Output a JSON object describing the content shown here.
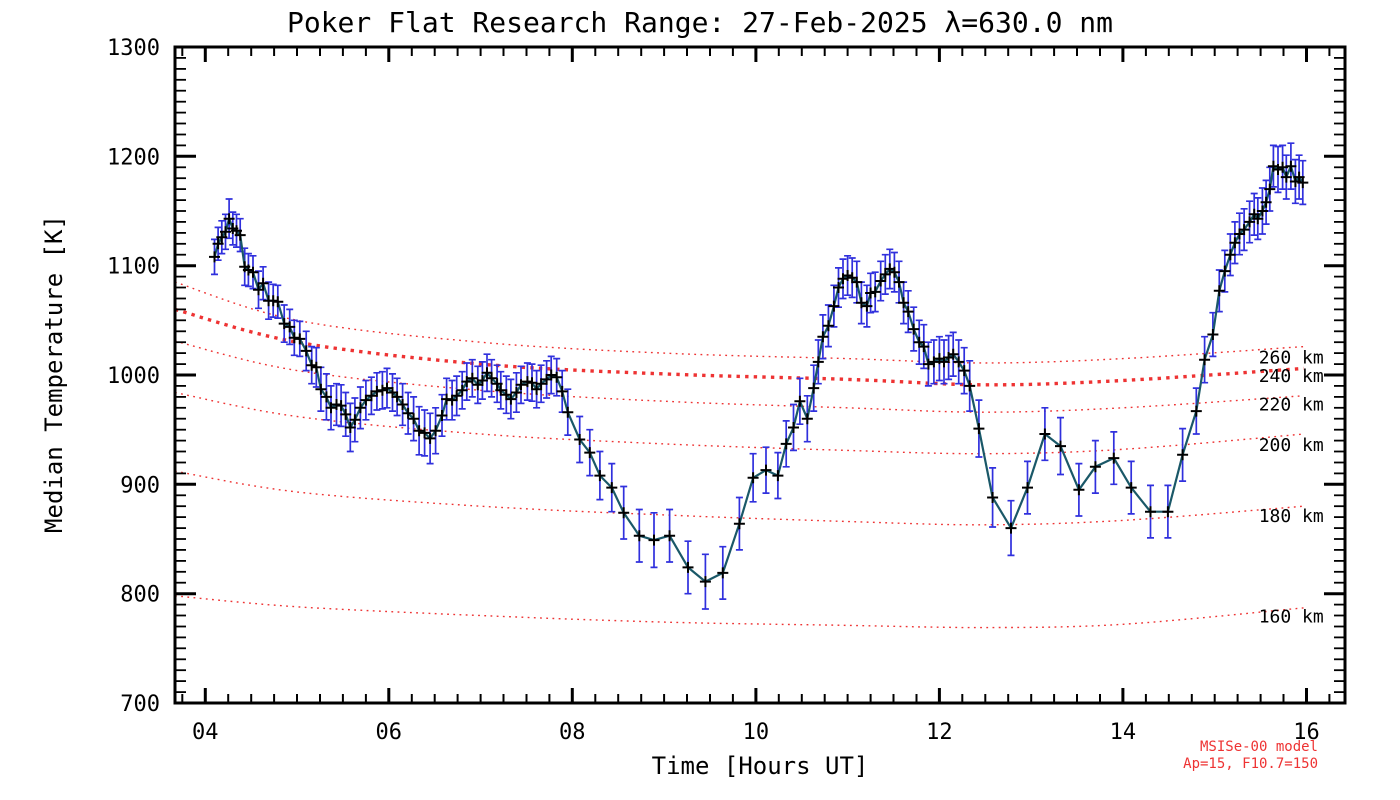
{
  "chart_data": {
    "type": "line",
    "title": "Poker Flat Research Range: 27-Feb-2025 λ=630.0 nm",
    "xlabel": "Time [Hours UT]",
    "ylabel": "Median Temperature [K]",
    "xlim": [
      3.67,
      16.42
    ],
    "ylim": [
      700,
      1300
    ],
    "grid": false,
    "axes_color": "#000000",
    "x_ticks": [
      {
        "value": 4,
        "label": "04"
      },
      {
        "value": 6,
        "label": "06"
      },
      {
        "value": 8,
        "label": "08"
      },
      {
        "value": 10,
        "label": "10"
      },
      {
        "value": 12,
        "label": "12"
      },
      {
        "value": 14,
        "label": "14"
      },
      {
        "value": 16,
        "label": "16"
      }
    ],
    "x_minor_step": 0.25,
    "y_tick_values": [
      700,
      800,
      900,
      1000,
      1100,
      1200,
      1300
    ],
    "y_minor_step": 10,
    "series": {
      "name": "median temperature",
      "marker": "plus",
      "marker_color": "#000000",
      "line_color": "#1a5868",
      "errorbar_color": "#3030dd",
      "points": [
        [
          4.1,
          1108,
          16
        ],
        [
          4.14,
          1120,
          15
        ],
        [
          4.18,
          1126,
          15
        ],
        [
          4.22,
          1131,
          16
        ],
        [
          4.26,
          1143,
          18
        ],
        [
          4.3,
          1134,
          15
        ],
        [
          4.34,
          1132,
          15
        ],
        [
          4.38,
          1128,
          15
        ],
        [
          4.43,
          1099,
          17
        ],
        [
          4.47,
          1096,
          15
        ],
        [
          4.52,
          1094,
          15
        ],
        [
          4.58,
          1078,
          17
        ],
        [
          4.63,
          1084,
          15
        ],
        [
          4.69,
          1068,
          17
        ],
        [
          4.74,
          1068,
          15
        ],
        [
          4.79,
          1067,
          15
        ],
        [
          4.86,
          1047,
          17
        ],
        [
          4.92,
          1044,
          16
        ],
        [
          4.97,
          1034,
          16
        ],
        [
          5.03,
          1033,
          16
        ],
        [
          5.1,
          1022,
          18
        ],
        [
          5.16,
          1009,
          17
        ],
        [
          5.21,
          1007,
          18
        ],
        [
          5.26,
          987,
          20
        ],
        [
          5.32,
          980,
          21
        ],
        [
          5.37,
          970,
          20
        ],
        [
          5.43,
          973,
          19
        ],
        [
          5.48,
          972,
          19
        ],
        [
          5.53,
          964,
          20
        ],
        [
          5.58,
          952,
          22
        ],
        [
          5.63,
          959,
          20
        ],
        [
          5.69,
          970,
          19
        ],
        [
          5.75,
          977,
          18
        ],
        [
          5.81,
          981,
          17
        ],
        [
          5.87,
          985,
          17
        ],
        [
          5.93,
          986,
          17
        ],
        [
          5.98,
          988,
          18
        ],
        [
          6.04,
          984,
          17
        ],
        [
          6.09,
          980,
          17
        ],
        [
          6.15,
          973,
          19
        ],
        [
          6.21,
          965,
          19
        ],
        [
          6.27,
          960,
          20
        ],
        [
          6.33,
          949,
          22
        ],
        [
          6.39,
          947,
          21
        ],
        [
          6.45,
          942,
          23
        ],
        [
          6.51,
          949,
          21
        ],
        [
          6.58,
          963,
          19
        ],
        [
          6.63,
          978,
          19
        ],
        [
          6.69,
          977,
          18
        ],
        [
          6.74,
          981,
          18
        ],
        [
          6.8,
          986,
          17
        ],
        [
          6.85,
          994,
          17
        ],
        [
          6.91,
          997,
          17
        ],
        [
          6.97,
          991,
          17
        ],
        [
          7.02,
          995,
          17
        ],
        [
          7.07,
          1002,
          17
        ],
        [
          7.12,
          997,
          17
        ],
        [
          7.18,
          992,
          17
        ],
        [
          7.22,
          986,
          17
        ],
        [
          7.28,
          982,
          17
        ],
        [
          7.33,
          978,
          18
        ],
        [
          7.39,
          984,
          18
        ],
        [
          7.44,
          991,
          17
        ],
        [
          7.51,
          994,
          17
        ],
        [
          7.56,
          993,
          17
        ],
        [
          7.61,
          987,
          17
        ],
        [
          7.66,
          992,
          17
        ],
        [
          7.72,
          996,
          17
        ],
        [
          7.77,
          1000,
          17
        ],
        [
          7.83,
          998,
          17
        ],
        [
          7.89,
          985,
          19
        ],
        [
          7.95,
          966,
          21
        ],
        [
          8.08,
          941,
          21
        ],
        [
          8.19,
          929,
          21
        ],
        [
          8.3,
          908,
          22
        ],
        [
          8.43,
          897,
          22
        ],
        [
          8.56,
          874,
          24
        ],
        [
          8.73,
          853,
          24
        ],
        [
          8.89,
          849,
          25
        ],
        [
          9.06,
          853,
          24
        ],
        [
          9.26,
          824,
          24
        ],
        [
          9.45,
          811,
          25
        ],
        [
          9.64,
          819,
          24
        ],
        [
          9.82,
          864,
          24
        ],
        [
          9.97,
          906,
          22
        ],
        [
          10.11,
          913,
          21
        ],
        [
          10.24,
          908,
          21
        ],
        [
          10.33,
          937,
          21
        ],
        [
          10.41,
          952,
          21
        ],
        [
          10.48,
          976,
          21
        ],
        [
          10.56,
          960,
          21
        ],
        [
          10.63,
          988,
          21
        ],
        [
          10.68,
          1012,
          20
        ],
        [
          10.73,
          1035,
          20
        ],
        [
          10.79,
          1045,
          19
        ],
        [
          10.85,
          1063,
          19
        ],
        [
          10.9,
          1080,
          18
        ],
        [
          10.95,
          1088,
          18
        ],
        [
          11.0,
          1091,
          18
        ],
        [
          11.05,
          1089,
          18
        ],
        [
          11.1,
          1085,
          19
        ],
        [
          11.15,
          1066,
          19
        ],
        [
          11.21,
          1063,
          19
        ],
        [
          11.25,
          1075,
          18
        ],
        [
          11.3,
          1076,
          18
        ],
        [
          11.36,
          1086,
          18
        ],
        [
          11.41,
          1092,
          18
        ],
        [
          11.46,
          1097,
          18
        ],
        [
          11.51,
          1094,
          18
        ],
        [
          11.56,
          1085,
          19
        ],
        [
          11.61,
          1066,
          19
        ],
        [
          11.66,
          1058,
          19
        ],
        [
          11.72,
          1042,
          20
        ],
        [
          11.78,
          1030,
          20
        ],
        [
          11.83,
          1026,
          20
        ],
        [
          11.88,
          1010,
          20
        ],
        [
          11.94,
          1012,
          20
        ],
        [
          12.0,
          1015,
          20
        ],
        [
          12.05,
          1012,
          20
        ],
        [
          12.1,
          1016,
          20
        ],
        [
          12.15,
          1019,
          20
        ],
        [
          12.21,
          1012,
          20
        ],
        [
          12.27,
          1004,
          21
        ],
        [
          12.33,
          990,
          23
        ],
        [
          12.43,
          951,
          26
        ],
        [
          12.58,
          888,
          27
        ],
        [
          12.78,
          860,
          25
        ],
        [
          12.96,
          897,
          24
        ],
        [
          13.15,
          946,
          24
        ],
        [
          13.32,
          935,
          26
        ],
        [
          13.52,
          895,
          24
        ],
        [
          13.7,
          916,
          24
        ],
        [
          13.9,
          924,
          24
        ],
        [
          14.09,
          897,
          24
        ],
        [
          14.3,
          875,
          24
        ],
        [
          14.49,
          875,
          24
        ],
        [
          14.65,
          927,
          24
        ],
        [
          14.8,
          967,
          21
        ],
        [
          14.89,
          1014,
          21
        ],
        [
          14.98,
          1037,
          20
        ],
        [
          15.05,
          1077,
          19
        ],
        [
          15.11,
          1095,
          19
        ],
        [
          15.17,
          1110,
          19
        ],
        [
          15.22,
          1121,
          19
        ],
        [
          15.27,
          1129,
          19
        ],
        [
          15.32,
          1133,
          19
        ],
        [
          15.38,
          1140,
          19
        ],
        [
          15.43,
          1147,
          19
        ],
        [
          15.47,
          1143,
          19
        ],
        [
          15.52,
          1150,
          21
        ],
        [
          15.56,
          1158,
          20
        ],
        [
          15.6,
          1170,
          20
        ],
        [
          15.64,
          1191,
          19
        ],
        [
          15.69,
          1188,
          21
        ],
        [
          15.74,
          1190,
          20
        ],
        [
          15.78,
          1181,
          20
        ],
        [
          15.83,
          1191,
          21
        ],
        [
          15.88,
          1177,
          20
        ],
        [
          15.92,
          1181,
          20
        ],
        [
          15.96,
          1176,
          20
        ]
      ]
    },
    "model": {
      "name": "MSISe-00 model",
      "params": "Ap=15, F10.7=150",
      "color": "#ee3333",
      "label_x_hours": 15.48,
      "lines": [
        {
          "label": "260 km",
          "bold": false,
          "label_T": 1016,
          "anchors": [
            [
              3.67,
              1085
            ],
            [
              5.0,
              1050
            ],
            [
              7.0,
              1030
            ],
            [
              9.0,
              1020
            ],
            [
              11.0,
              1015
            ],
            [
              12.5,
              1011
            ],
            [
              14.0,
              1015
            ],
            [
              15.97,
              1026
            ]
          ]
        },
        {
          "label": "240 km",
          "bold": true,
          "label_T": 999,
          "anchors": [
            [
              3.67,
              1060
            ],
            [
              5.0,
              1030
            ],
            [
              7.0,
              1010
            ],
            [
              9.0,
              1001
            ],
            [
              11.0,
              996
            ],
            [
              12.5,
              991
            ],
            [
              14.0,
              995
            ],
            [
              15.97,
              1006
            ]
          ]
        },
        {
          "label": "220 km",
          "bold": false,
          "label_T": 973,
          "anchors": [
            [
              3.67,
              1031
            ],
            [
              5.0,
              1004
            ],
            [
              7.0,
              986
            ],
            [
              9.0,
              976
            ],
            [
              11.0,
              970
            ],
            [
              12.5,
              966
            ],
            [
              14.0,
              970
            ],
            [
              15.97,
              981
            ]
          ]
        },
        {
          "label": "200 km",
          "bold": false,
          "label_T": 936,
          "anchors": [
            [
              3.67,
              984
            ],
            [
              5.0,
              962
            ],
            [
              7.0,
              946
            ],
            [
              9.0,
              937
            ],
            [
              11.0,
              931
            ],
            [
              12.5,
              928
            ],
            [
              14.0,
              932
            ],
            [
              15.97,
              946
            ]
          ]
        },
        {
          "label": "180 km",
          "bold": false,
          "label_T": 871,
          "anchors": [
            [
              3.67,
              912
            ],
            [
              5.0,
              893
            ],
            [
              7.0,
              880
            ],
            [
              9.0,
              872
            ],
            [
              11.0,
              866
            ],
            [
              12.5,
              863
            ],
            [
              14.0,
              867
            ],
            [
              15.97,
              880
            ]
          ]
        },
        {
          "label": "160 km",
          "bold": false,
          "label_T": 779,
          "anchors": [
            [
              3.67,
              798
            ],
            [
              5.0,
              788
            ],
            [
              7.0,
              780
            ],
            [
              9.0,
              774
            ],
            [
              11.0,
              771
            ],
            [
              12.5,
              769
            ],
            [
              14.0,
              772
            ],
            [
              15.97,
              787
            ]
          ]
        }
      ]
    }
  }
}
